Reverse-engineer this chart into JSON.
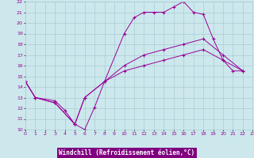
{
  "xlabel": "Windchill (Refroidissement éolien,°C)",
  "bg_color": "#cce8ec",
  "grid_color": "#aaccd4",
  "line_color": "#990099",
  "xlim": [
    0,
    23
  ],
  "ylim": [
    10,
    22
  ],
  "xticks": [
    0,
    1,
    2,
    3,
    4,
    5,
    6,
    7,
    8,
    9,
    10,
    11,
    12,
    13,
    14,
    15,
    16,
    17,
    18,
    19,
    20,
    21,
    22,
    23
  ],
  "yticks": [
    10,
    11,
    12,
    13,
    14,
    15,
    16,
    17,
    18,
    19,
    20,
    21,
    22
  ],
  "line1_x": [
    0,
    1,
    3,
    4,
    5,
    6,
    7,
    8,
    10,
    11,
    12,
    13,
    14,
    15,
    16,
    17,
    18,
    19,
    20,
    21,
    22
  ],
  "line1_y": [
    14.5,
    13.0,
    12.7,
    11.8,
    10.5,
    10.0,
    12.1,
    14.5,
    19.0,
    20.5,
    21.0,
    21.0,
    21.0,
    21.5,
    22.0,
    21.0,
    20.8,
    18.5,
    16.5,
    15.5,
    15.5
  ],
  "line2_x": [
    0,
    1,
    3,
    5,
    6,
    8,
    10,
    12,
    14,
    16,
    18,
    20,
    22
  ],
  "line2_y": [
    14.5,
    13.0,
    12.5,
    10.5,
    13.0,
    14.5,
    15.5,
    16.0,
    16.5,
    17.0,
    17.5,
    16.5,
    15.5
  ],
  "line3_x": [
    0,
    1,
    3,
    5,
    6,
    8,
    10,
    12,
    14,
    16,
    18,
    20,
    22
  ],
  "line3_y": [
    14.5,
    13.0,
    12.5,
    10.5,
    13.0,
    14.5,
    16.0,
    17.0,
    17.5,
    18.0,
    18.5,
    17.0,
    15.5
  ],
  "xlabel_bg": "#800080",
  "xlabel_color": "white",
  "tick_fontsize": 4.5,
  "xlabel_fontsize": 5.5
}
